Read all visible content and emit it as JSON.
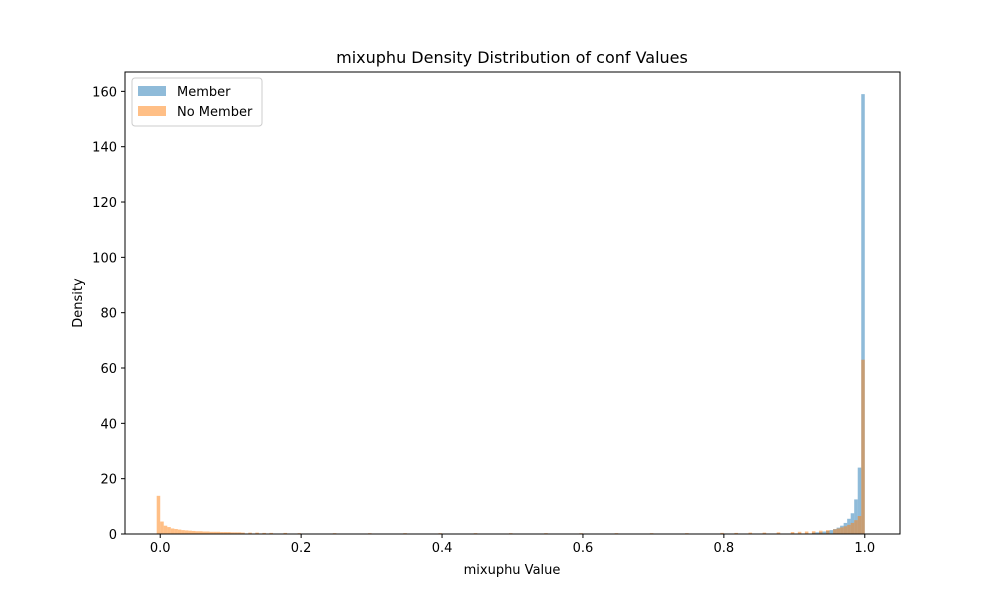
{
  "chart_data": {
    "type": "histogram",
    "title": "mixuphu Density Distribution of conf Values",
    "xlabel": "mixuphu Value",
    "ylabel": "Density",
    "xlim": [
      -0.05,
      1.05
    ],
    "ylim": [
      0,
      167
    ],
    "x_ticks": [
      0.0,
      0.2,
      0.4,
      0.6,
      0.8,
      1.0
    ],
    "x_tick_labels": [
      "0.0",
      "0.2",
      "0.4",
      "0.6",
      "0.8",
      "1.0"
    ],
    "y_ticks": [
      0,
      20,
      40,
      60,
      80,
      100,
      120,
      140,
      160
    ],
    "y_tick_labels": [
      "0",
      "20",
      "40",
      "60",
      "80",
      "100",
      "120",
      "140",
      "160"
    ],
    "grid": false,
    "legend_position": "upper-left",
    "bin_width": 0.005,
    "colors": {
      "member": "#1f77b4",
      "no_member": "#ff7f0e"
    },
    "series": [
      {
        "name": "Member",
        "color": "#1f77b4",
        "opacity": 0.5,
        "bins": [
          [
            0.93,
            0.5
          ],
          [
            0.935,
            0.6
          ],
          [
            0.94,
            0.7
          ],
          [
            0.945,
            0.9
          ],
          [
            0.95,
            1.1
          ],
          [
            0.955,
            1.4
          ],
          [
            0.96,
            1.8
          ],
          [
            0.965,
            2.3
          ],
          [
            0.97,
            3.0
          ],
          [
            0.975,
            4.0
          ],
          [
            0.98,
            5.5
          ],
          [
            0.985,
            7.5
          ],
          [
            0.99,
            12.5
          ],
          [
            0.995,
            24.0
          ],
          [
            1.0,
            159.0
          ]
        ]
      },
      {
        "name": "No Member",
        "color": "#ff7f0e",
        "opacity": 0.5,
        "bins": [
          [
            0.0,
            13.8
          ],
          [
            0.005,
            4.5
          ],
          [
            0.01,
            3.0
          ],
          [
            0.015,
            2.5
          ],
          [
            0.02,
            2.0
          ],
          [
            0.025,
            1.8
          ],
          [
            0.03,
            1.6
          ],
          [
            0.035,
            1.4
          ],
          [
            0.04,
            1.3
          ],
          [
            0.045,
            1.2
          ],
          [
            0.05,
            1.1
          ],
          [
            0.055,
            1.0
          ],
          [
            0.06,
            1.0
          ],
          [
            0.065,
            0.9
          ],
          [
            0.07,
            0.9
          ],
          [
            0.075,
            0.8
          ],
          [
            0.08,
            0.8
          ],
          [
            0.085,
            0.8
          ],
          [
            0.09,
            0.7
          ],
          [
            0.095,
            0.7
          ],
          [
            0.1,
            0.7
          ],
          [
            0.105,
            0.6
          ],
          [
            0.11,
            0.6
          ],
          [
            0.115,
            0.6
          ],
          [
            0.12,
            0.5
          ],
          [
            0.13,
            0.5
          ],
          [
            0.14,
            0.5
          ],
          [
            0.15,
            0.4
          ],
          [
            0.16,
            0.4
          ],
          [
            0.18,
            0.4
          ],
          [
            0.2,
            0.3
          ],
          [
            0.25,
            0.3
          ],
          [
            0.3,
            0.3
          ],
          [
            0.35,
            0.3
          ],
          [
            0.4,
            0.3
          ],
          [
            0.45,
            0.3
          ],
          [
            0.5,
            0.3
          ],
          [
            0.55,
            0.3
          ],
          [
            0.6,
            0.3
          ],
          [
            0.65,
            0.3
          ],
          [
            0.7,
            0.3
          ],
          [
            0.75,
            0.3
          ],
          [
            0.8,
            0.4
          ],
          [
            0.82,
            0.4
          ],
          [
            0.84,
            0.5
          ],
          [
            0.86,
            0.5
          ],
          [
            0.88,
            0.6
          ],
          [
            0.9,
            0.7
          ],
          [
            0.91,
            0.8
          ],
          [
            0.92,
            0.9
          ],
          [
            0.93,
            1.0
          ],
          [
            0.94,
            1.2
          ],
          [
            0.95,
            1.4
          ],
          [
            0.96,
            1.7
          ],
          [
            0.965,
            2.0
          ],
          [
            0.97,
            2.4
          ],
          [
            0.975,
            2.8
          ],
          [
            0.98,
            3.3
          ],
          [
            0.985,
            4.0
          ],
          [
            0.99,
            5.0
          ],
          [
            0.995,
            6.5
          ],
          [
            1.0,
            63.0
          ]
        ]
      }
    ]
  }
}
